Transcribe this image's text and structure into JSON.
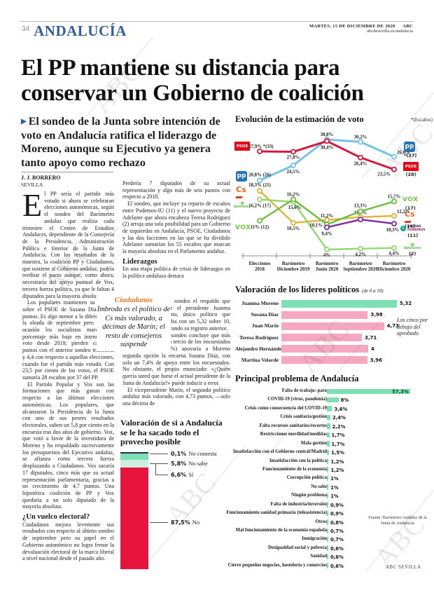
{
  "page": {
    "number": "34",
    "section": "ANDALUCÍA",
    "date_line": "MARTES, 15 DE DICIEMBRE DE 2020",
    "brand": "ABC",
    "site": "abcdesevilla.es/andalucia",
    "watermark": "ABC"
  },
  "headline": "El PP mantiene su distancia para conservar un Gobierno de coalición",
  "standfirst": "El sondeo de la Junta sobre intención de voto en Andalucía ratifica el liderazgo de Moreno, aunque su Ejecutivo ya genera tanto apoyo como rechazo",
  "byline": {
    "author": "J. J. BORRERO",
    "place": "SEVILLA"
  },
  "article": {
    "dropcap": "E",
    "col1_p1": "l PP sería el partido más votado si ahora se celebraran elecciones autonómicas, según el sondeo del Barómetro andaluz que realiza cada trimestre el Centro de Estudios Andaluces, dependiente de la Consejería de la Presidencia, Administración Pública e Interior de la Junta de Andalucía. Con los resultados de la muestra, la coalición PP y Ciudadanos, que sostiene al Gobierno andaluz, podría reeditar el pacto aunque, como ahora, necesitaría del apoyo puntual de Vox, tercera fuerza política, ya que le faltan 4 diputados para la mayoría absoluta.",
    "col1_p2": "Los populares mantienen su ventaja sobre el PSOE de Susana Díaz a 3,1 puntos. Es algo menor a la diferencia de la oleada de septiembre pero en esta ocasión los socialistas marcan su porcentaje más bajo en intención de voto desde 2018; pierden casi tres puntos con el anterior sondeo trimestral y 4,4 con respecto a aquellas elecciones, cuando fue el partido más votado. Con 23,5 por ciento de los votos, el PSOE sumaría 28 escaños por 37 del PP.",
    "col1_p3": "El Partido Popular y Vox son las formaciones que más ganan con respecto a las últimas elecciones autonómicas. Los populares, que alcanzaron la Presidencia de la Junta con uno de sus peores resultados electorales, suben un 5,8 por ciento en la encuesta tras dos años de gobierno. Vox, que votó a favor de la investidura de Moreno y ha respaldado sucesivamente los presupuestos del Ejecutivo andaluz, se afianza como tercera fuerza desplazando a Ciudadanos. Vox sacaría 17 diputados, cinco más que su actual representación parlamentaria, gracias a un crecimiento de 4,7 puntos. Una hipotética coalición de PP y Vox quedaría a un solo diputado de la mayoría absoluta.",
    "col1_h": "¿Un vuelco electoral?",
    "col1_p4": "Ciudadanos mejora levemente sus resultados con respecto al último sondeo de septiembre pero su papel en el Gobierno autonómico no logra frenar la devaluación electoral de la marca liberal a nivel nacional desde el pasado año.",
    "col2_p1": "Perdería 7 diputados de su actual representación y algo más de seis puntos con respecto a 2018.",
    "col2_p2": "El sondeo, que incluye ya reparto de escaños entre Podemos-IU (11) y el nuevo proyecto de Adelante que ahora encabeza Teresa Rodríguez (2) arroja una sola posibilidad para un Gobierno de izquierdas en Andalucía, PSOE, Ciudadanos y las dos facciones en las que se ha dividido Adelante sumarían los 55 escaños que marcan la mayoría absoluta en el Parlamento andaluz.",
    "col2_h": "Liderazgos",
    "col2_p3a": "En una etapa política de crisis de liderazgos en la política andaluza destaca",
    "col2_p3b": "en el sondeo el respaldo que recibe el presidente Juanma Moreno, único político que aprueba con un 5,32 sobre 10, mejorando su registro anterior.",
    "col2_p4a": "El sondeo concluye que más de un tercio de los encuestados (33,5%) apoyaría a Moreno como presidente de la Junta. La",
    "col2_p4b": "segunda opción la encarna Susana Díaz, con solo un 7,4% de apoyo entre los encuestados. No obstante, el propio enunciado: «¿Quién quería usted que fuese el actual presidente de la Junta de Andalucía?» puede inducir a error.",
    "col2_p5": "El vicepresidente Marín, el segundo político andaluz más valorado, con 4,73 puntos, —solo una décima de"
  },
  "pull_quote": {
    "kicker": "Ciudadanos",
    "text": "Imbroda es el político de Cs más valorado, a décimas de Marín; el resto de consejeros suspende"
  },
  "icons": {
    "psoe": "PSOE",
    "pp": "pp",
    "cs": "Cs",
    "vox": "VOX",
    "adelante": "Adelante",
    "unidas_podemos": "UNIDAS PODEMOS",
    "heart": "♥",
    "flower": "✾"
  },
  "chart_data": [
    {
      "type": "line",
      "title": "Evolución de la estimación de voto",
      "note": "*(Escaños)",
      "categories": [
        [
          "Elecciones",
          "2018"
        ],
        [
          "Barómetro",
          "Diciembre 2019"
        ],
        [
          "Barómetro",
          "Junio 2020"
        ],
        [
          "Barómetro",
          "Septiembre 2020"
        ],
        [
          "Barómetro",
          "Diciembre 2020"
        ]
      ],
      "ylim": [
        0,
        35
      ],
      "series": [
        {
          "name": "PSOE",
          "color": "#d6173c",
          "values": [
            27.9,
            27.8,
            30.4,
            26.4,
            23.5
          ],
          "labels": [
            "27,9% *(33)",
            "27,8%",
            "30,4%",
            "26,4%",
            "23,5%"
          ],
          "seats": "(28)"
        },
        {
          "name": "PP",
          "color": "#74c3e8",
          "values": [
            20.8,
            24.5,
            30.8,
            30.2,
            26.6
          ],
          "labels": [
            "20,8% (26)",
            "24,5%",
            "30,8%",
            "30,2%",
            "26,6%"
          ],
          "seats": "*(37)"
        },
        {
          "name": "Cs",
          "color": "#e0b23a",
          "values": [
            18.3,
            10.5,
            11.2,
            11.9,
            12.2
          ],
          "labels": [
            "18,3% (21)",
            "10,5%",
            "11,2%",
            "11,9%",
            "12,2%"
          ],
          "seats": "(14)"
        },
        {
          "name": "Adelante",
          "color": "#93d86e",
          "values": [
            16.2,
            15.6,
            4,
            4.2,
            4.4
          ],
          "labels": [
            "16,2% (17)",
            "15,6%",
            "4%",
            "4,2%",
            "4,4%"
          ],
          "seats": "(2)"
        },
        {
          "name": "Vox",
          "color": "#6cbe3c",
          "values": [
            11,
            16.2,
            10.1,
            13.3,
            15.7
          ],
          "labels": [
            "11% (12)",
            "16,2%",
            "10,1%",
            "13,3%",
            "15,7%"
          ],
          "seats": "(17)"
        },
        {
          "name": "Unidas Podemos",
          "color": "#7b2d9e",
          "values": [
            null,
            null,
            9.4,
            11.3,
            10.3
          ],
          "labels": [
            "",
            "",
            "9,4%",
            "",
            "10,3%"
          ],
          "seats": "(11)"
        }
      ]
    },
    {
      "type": "bar",
      "title": "Valoración de los líderes políticos",
      "subtitle": "(de 0 a 10)",
      "categories": [
        "Juanma Moreno",
        "Susana Díaz",
        "Juan Marín",
        "Teresa Rodríguez",
        "Alejandro Hernández",
        "Martina Velarde"
      ],
      "values": [
        5.32,
        3.98,
        4.73,
        3.71,
        4,
        3.96
      ],
      "value_labels": [
        "5,32",
        "3,98",
        "4,73",
        "3,71",
        "4",
        "3,96"
      ],
      "annotation": "Los cinco por debajo del aprobado",
      "xlim": [
        0,
        10
      ],
      "highlight_color": "#7de0b2",
      "bar_color": "#f5a8bf"
    },
    {
      "type": "bar",
      "title": "Principal problema de Andalucía",
      "categories": [
        "Falta de trabajo: paro",
        "COVID-19 (virus, pandemia)",
        "Crisis como consecuencia del COVID-19",
        "Crisis sanitaria/gestión",
        "Falta recursos sanitarios/recortes",
        "Restricciones movilidad/medidas",
        "Mala gestión",
        "Insatisfacción con el Gobierno central/Madrid",
        "Insatisfacción con la política",
        "Funcionamiento de la economía",
        "Corrupción política",
        "No sabe",
        "Ningún problema",
        "Falta de industria/inversión",
        "Funcionamiento sanidad primaria (teleasistencia)",
        "Otros",
        "Mal funcionamiento de la economía española",
        "Inmigración",
        "Desigualdad social y pobreza",
        "Sanidad",
        "Cierre pequeños negocios, hostelería y comercios"
      ],
      "values": [
        57.3,
        8,
        3.6,
        2.4,
        2.2,
        1.7,
        1.7,
        1.5,
        1.2,
        1.2,
        1,
        1,
        1,
        0.9,
        0.9,
        0.8,
        0.7,
        0.7,
        0.6,
        0.6,
        0.6
      ],
      "value_labels": [
        "57,3%",
        "8%",
        "3,6%",
        "2,4%",
        "2,2%",
        "1,7%",
        "1,7%",
        "1,5%",
        "1,2%",
        "1,2%",
        "1%",
        "1%",
        "1%",
        "0,9%",
        "0,9%",
        "0,8%",
        "0,7%",
        "0,7%",
        "0,6%",
        "0,6%",
        "0,6%"
      ],
      "bar_color": "#7de0b2"
    },
    {
      "type": "stacked-bar",
      "title": "Valoración de si a Andalucía se le ha sacado todo el provecho posible",
      "segments": [
        {
          "label": "No contesta",
          "value": 0.1,
          "value_label": "0,1%",
          "color": "#2e2a55"
        },
        {
          "label": "No sabe",
          "value": 5.8,
          "value_label": "5,8%",
          "color": "#7de0b2"
        },
        {
          "label": "Sí",
          "value": 6.6,
          "value_label": "6,6%",
          "color": "#cdeedd"
        },
        {
          "label": "No",
          "value": 87.5,
          "value_label": "87,5%",
          "color": "#e8133d"
        }
      ]
    }
  ],
  "footer": {
    "source": "Fuente: Barómetro Andaluz de la Junta de Andalucía",
    "credit": "ABC SEVILLA"
  }
}
